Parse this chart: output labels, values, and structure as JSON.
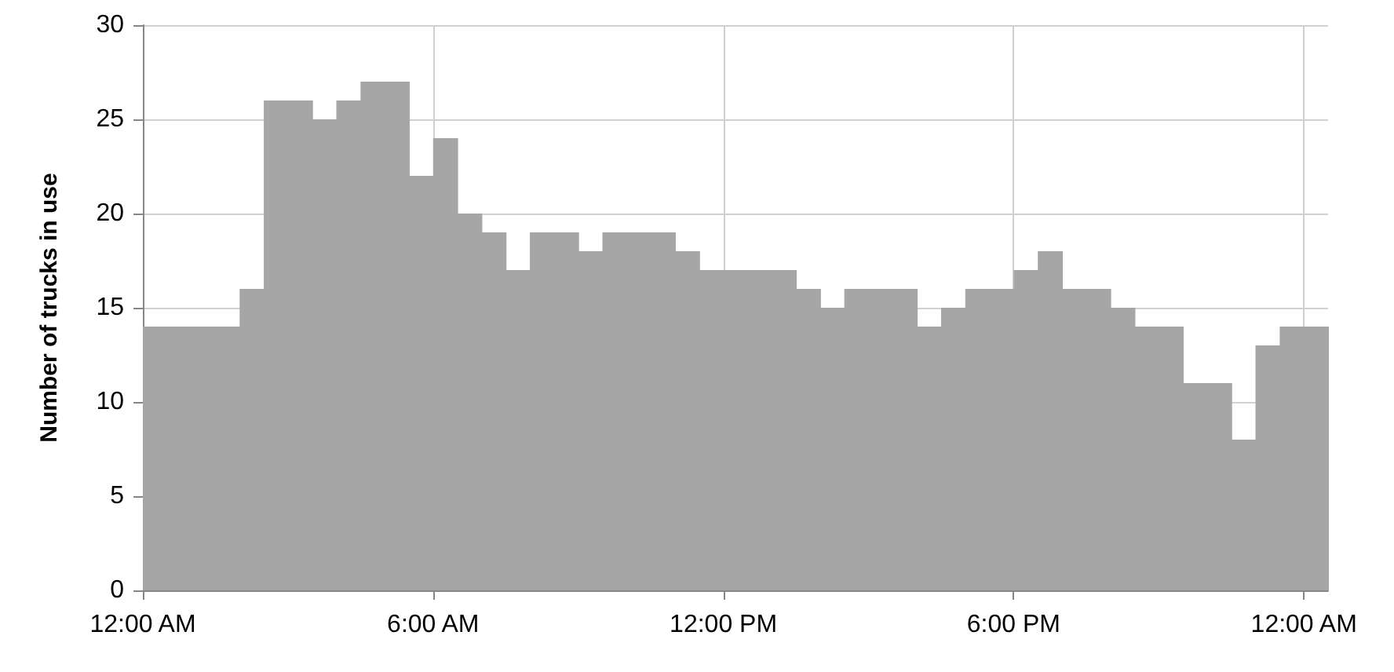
{
  "chart_data": {
    "type": "histogram",
    "ylabel": "Number of trucks in use",
    "color": "#a6a6a6",
    "bins": [
      0,
      0.5,
      1,
      1.5,
      2,
      2.5,
      3,
      3.5,
      4,
      4.5,
      5,
      5.5,
      6,
      6.5,
      7,
      7.5,
      8,
      8.5,
      9,
      9.5,
      10,
      10.5,
      11,
      11.5,
      12,
      12.5,
      13,
      13.5,
      14,
      14.5,
      15,
      15.5,
      16,
      16.5,
      17,
      17.5,
      18,
      18.5,
      19,
      19.5,
      20,
      20.5,
      21,
      21.5,
      22,
      22.5,
      23,
      23.5,
      24,
      24.5
    ],
    "values": [
      14,
      14,
      14,
      14,
      16,
      26,
      26,
      25,
      26,
      27,
      27,
      22,
      24,
      20,
      19,
      17,
      19,
      19,
      18,
      19,
      19,
      19,
      18,
      17,
      17,
      17,
      17,
      16,
      15,
      16,
      16,
      16,
      14,
      15,
      16,
      16,
      17,
      18,
      16,
      16,
      15,
      14,
      14,
      11,
      11,
      8,
      13,
      14,
      14
    ],
    "xlim": [
      0,
      24.5
    ],
    "xticks": [
      {
        "value": 0,
        "label": "12:00 AM"
      },
      {
        "value": 6,
        "label": "6:00 AM"
      },
      {
        "value": 12,
        "label": "12:00 PM"
      },
      {
        "value": 18,
        "label": "6:00 PM"
      },
      {
        "value": 24,
        "label": "12:00 AM"
      }
    ],
    "ylim": [
      0,
      30
    ],
    "yticks": [
      0,
      5,
      10,
      15,
      20,
      25,
      30
    ],
    "grid": true
  }
}
